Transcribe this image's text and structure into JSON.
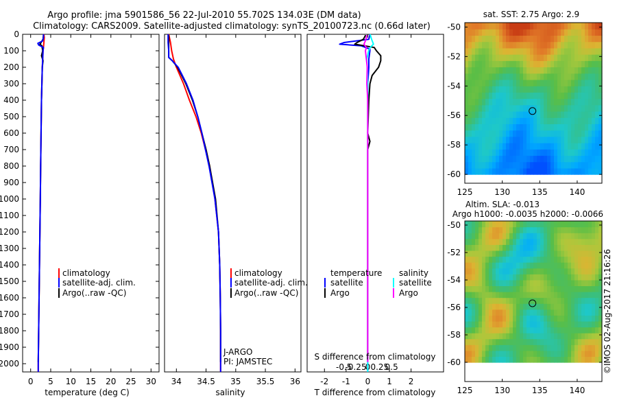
{
  "header": {
    "title1": "Argo profile: jma 5901586_56 22-Jul-2010 55.702S 134.03E (DM data)",
    "title2": "Climatology: CARS2009. Satellite-adjusted climatology: synTS_20100723.nc (0.66d later)"
  },
  "colors": {
    "climatology": "#ff0000",
    "satellite": "#0000ff",
    "argo": "#000000",
    "sal_satellite": "#00ffff",
    "sal_argo": "#ff00ff"
  },
  "chart_data": [
    {
      "type": "line",
      "id": "temperature",
      "xlabel": "temperature (deg C)",
      "xlim": [
        -2,
        32
      ],
      "ylim": [
        2050,
        0
      ],
      "xticks": [
        0,
        5,
        10,
        15,
        20,
        25,
        30
      ],
      "yticks": [
        0,
        100,
        200,
        300,
        400,
        500,
        600,
        700,
        800,
        900,
        1000,
        1100,
        1200,
        1300,
        1400,
        1500,
        1600,
        1700,
        1800,
        1900,
        2000
      ],
      "legend": [
        "climatology",
        "satellite-adj. clim.",
        "Argo(..raw -QC)"
      ],
      "series": [
        {
          "name": "climatology",
          "color": "red",
          "depth": [
            0,
            20,
            50,
            80,
            100,
            150,
            200,
            300,
            400,
            600,
            800,
            1000,
            1200,
            1400,
            1600,
            1800,
            2000,
            2050
          ],
          "values": [
            3.3,
            3.4,
            3.3,
            3.2,
            3.1,
            3.0,
            2.9,
            2.8,
            2.7,
            2.6,
            2.5,
            2.4,
            2.3,
            2.2,
            2.1,
            2.0,
            1.9,
            1.9
          ]
        },
        {
          "name": "Argo(..raw -QC)",
          "color": "black",
          "depth": [
            5,
            30,
            50,
            60,
            70,
            100,
            130,
            160,
            200,
            300,
            400,
            600,
            800,
            1000,
            1200,
            1400,
            1600,
            1800,
            1990
          ],
          "values": [
            3.2,
            3.1,
            2.6,
            2.3,
            2.8,
            3.0,
            2.7,
            3.1,
            2.9,
            2.8,
            2.7,
            2.6,
            2.5,
            2.4,
            2.3,
            2.2,
            2.1,
            2.0,
            1.9
          ]
        },
        {
          "name": "satellite-adj. clim.",
          "color": "blue",
          "depth": [
            0,
            20,
            40,
            55,
            65,
            80,
            100,
            150,
            200,
            300,
            400,
            600,
            800,
            1000,
            1200,
            1400,
            1600,
            1800,
            2000,
            2050
          ],
          "values": [
            3.2,
            3.2,
            3.0,
            1.8,
            2.0,
            3.2,
            3.1,
            3.0,
            2.9,
            2.8,
            2.7,
            2.6,
            2.5,
            2.4,
            2.3,
            2.2,
            2.1,
            2.0,
            1.9,
            1.9
          ]
        }
      ]
    },
    {
      "type": "line",
      "id": "salinity",
      "xlabel": "salinity",
      "xlim": [
        33.8,
        36.1
      ],
      "ylim": [
        2050,
        0
      ],
      "xticks": [
        34,
        34.5,
        35,
        35.5,
        36
      ],
      "tick_labels": [
        "34",
        "34.5",
        "35",
        "35.5",
        "36"
      ],
      "legend": [
        "climatology",
        "satellite-adj. clim.",
        "Argo(..raw -QC)"
      ],
      "annotation": [
        "J-ARGO",
        "PI: JAMSTEC"
      ],
      "series": [
        {
          "name": "climatology",
          "color": "red",
          "depth": [
            0,
            50,
            100,
            150,
            200,
            250,
            300,
            400,
            500,
            600,
            800,
            1000,
            1200,
            1400,
            1600,
            1800,
            2000,
            2050
          ],
          "values": [
            33.87,
            33.9,
            33.92,
            33.95,
            34.0,
            34.06,
            34.12,
            34.22,
            34.33,
            34.42,
            34.56,
            34.65,
            34.71,
            34.73,
            34.74,
            34.745,
            34.745,
            34.745
          ]
        },
        {
          "name": "Argo(..raw -QC)",
          "color": "black",
          "depth": [
            5,
            50,
            100,
            140,
            160,
            200,
            250,
            300,
            400,
            500,
            600,
            700,
            800,
            1000,
            1200,
            1400,
            1600,
            1800,
            1990
          ],
          "values": [
            33.87,
            33.87,
            33.87,
            33.87,
            33.93,
            34.02,
            34.09,
            34.16,
            34.27,
            34.36,
            34.43,
            34.5,
            34.56,
            34.66,
            34.71,
            34.73,
            34.74,
            34.745,
            34.745
          ]
        },
        {
          "name": "satellite-adj. clim.",
          "color": "blue",
          "depth": [
            0,
            50,
            100,
            140,
            160,
            200,
            250,
            300,
            400,
            500,
            600,
            700,
            800,
            1000,
            1200,
            1400,
            1600,
            1800,
            2000,
            2050
          ],
          "values": [
            33.86,
            33.86,
            33.87,
            33.87,
            33.93,
            34.03,
            34.1,
            34.17,
            34.28,
            34.36,
            34.43,
            34.49,
            34.55,
            34.65,
            34.71,
            34.73,
            34.74,
            34.745,
            34.745,
            34.745
          ]
        }
      ]
    },
    {
      "type": "line",
      "id": "difference",
      "xlabel": "T difference from climatology",
      "xlabel_top": "S difference from climatology",
      "xlim": [
        -2.8,
        3.5
      ],
      "ylim": [
        2050,
        0
      ],
      "xticks_T": [
        -2,
        -1,
        0,
        1,
        2
      ],
      "xticks_S": [
        -0.5,
        -0.25,
        0,
        0.25,
        0.5
      ],
      "legend_T": [
        "temperature",
        "satellite",
        "Argo"
      ],
      "legend_S": [
        "salinity",
        "satellite",
        "Argo"
      ],
      "series": [
        {
          "name": "T satellite",
          "color": "blue",
          "depth": [
            0,
            30,
            50,
            60,
            70,
            90,
            100,
            150,
            200,
            300,
            400,
            600,
            800,
            1000,
            1200,
            1400,
            1600,
            1800,
            2000,
            2050
          ],
          "values": [
            0.1,
            0.05,
            -1.1,
            -1.3,
            -0.3,
            0.1,
            0.1,
            0.05,
            0.05,
            0.0,
            0.0,
            0.0,
            0.0,
            0.0,
            0.0,
            0.0,
            0.0,
            0.0,
            0.0,
            0.0
          ]
        },
        {
          "name": "T Argo",
          "color": "black",
          "depth": [
            5,
            30,
            50,
            60,
            80,
            100,
            130,
            160,
            200,
            250,
            300,
            400,
            600,
            650,
            700,
            800,
            1000,
            1200,
            1400,
            1600,
            1800,
            1990
          ],
          "values": [
            -0.1,
            -0.2,
            -0.5,
            -0.6,
            0.3,
            0.4,
            0.6,
            0.6,
            0.5,
            0.2,
            0.1,
            0.05,
            0.0,
            0.1,
            0.0,
            0.0,
            0.0,
            0.0,
            0.0,
            0.0,
            0.0,
            0.0
          ]
        },
        {
          "name": "S satellite",
          "color": "cyan",
          "depth": [
            0,
            30,
            60,
            80,
            100,
            150,
            200,
            300,
            400,
            600,
            800,
            1000,
            1500,
            2050
          ],
          "values": [
            0.05,
            0.08,
            0.12,
            0.05,
            0.02,
            -0.02,
            -0.01,
            0.0,
            0.0,
            0.0,
            0.0,
            0.0,
            0.0,
            0.0
          ]
        },
        {
          "name": "S Argo",
          "color": "magenta",
          "depth": [
            5,
            40,
            60,
            80,
            100,
            150,
            200,
            300,
            400,
            600,
            800,
            1000,
            1500,
            1990
          ],
          "values": [
            -0.02,
            -0.05,
            -0.08,
            -0.03,
            -0.05,
            -0.03,
            -0.01,
            -0.02,
            0.0,
            0.0,
            0.0,
            0.0,
            0.0,
            0.0
          ]
        }
      ]
    },
    {
      "type": "heatmap",
      "id": "sst-map",
      "title": "sat. SST: 2.75 Argo: 2.9",
      "xlim": [
        125,
        143.3
      ],
      "ylim": [
        -60.6,
        -49.7
      ],
      "xticks": [
        125,
        130,
        135,
        140
      ],
      "yticks": [
        -50,
        -52,
        -54,
        -56,
        -58,
        -60
      ],
      "data_extent": {
        "lon": [
          125,
          143.3
        ],
        "lat": [
          -60,
          -49.7
        ]
      },
      "marker": {
        "lon": 134.03,
        "lat": -55.7
      }
    },
    {
      "type": "heatmap",
      "id": "sla-map",
      "title1": "Altim. SLA: -0.013",
      "title2": "Argo h1000: -0.0035 h2000: -0.0066",
      "xlim": [
        125,
        143.3
      ],
      "ylim": [
        -61.4,
        -49.7
      ],
      "xticks": [
        125,
        130,
        135,
        140
      ],
      "yticks": [
        -50,
        -52,
        -54,
        -56,
        -58,
        -60
      ],
      "data_extent": {
        "lon": [
          125,
          143.3
        ],
        "lat": [
          -60,
          -49.7
        ]
      },
      "marker": {
        "lon": 134.03,
        "lat": -55.7
      }
    }
  ],
  "footer": {
    "watermark": "©IMOS 02-Aug-2017 21:16:26"
  }
}
